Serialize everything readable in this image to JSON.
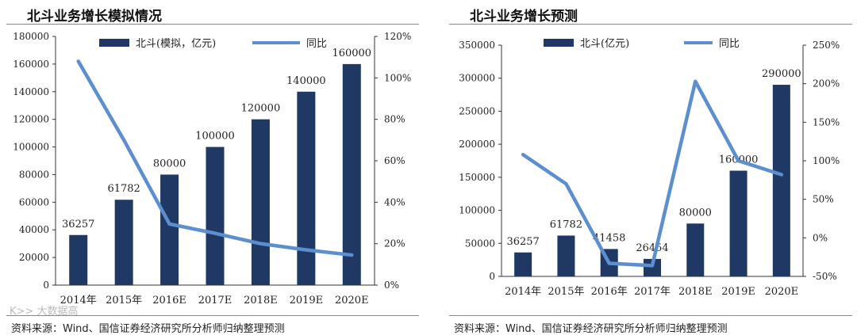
{
  "watermark": "K>> 大数据高",
  "chart_data": [
    {
      "type": "bar",
      "title": "北斗业务增长模拟情况",
      "source": "资料来源：Wind、国信证券经济研究所分析师归纳整理预测",
      "categories": [
        "2014年",
        "2015年",
        "2016E",
        "2017E",
        "2018E",
        "2019E",
        "2020E"
      ],
      "series": [
        {
          "name": "北斗(模拟，亿元)",
          "type": "bar",
          "axis": "left",
          "color": "#1f3864",
          "values": [
            36257,
            61782,
            80000,
            100000,
            120000,
            140000,
            160000
          ],
          "labels": [
            "36257",
            "61782",
            "80000",
            "100000",
            "120000",
            "140000",
            "160000"
          ]
        },
        {
          "name": "同比",
          "type": "line",
          "axis": "right",
          "color": "#5b8fd0",
          "values": [
            108,
            70,
            29.5,
            25,
            20,
            17,
            14.5
          ]
        }
      ],
      "left_axis": {
        "min": 0,
        "max": 180000,
        "ticks": [
          "0",
          "20000",
          "40000",
          "60000",
          "80000",
          "100000",
          "120000",
          "140000",
          "160000",
          "180000"
        ]
      },
      "right_axis": {
        "min": 0,
        "max": 120,
        "ticks": [
          "0%",
          "20%",
          "40%",
          "60%",
          "80%",
          "100%",
          "120%"
        ]
      }
    },
    {
      "type": "bar",
      "title": "北斗业务增长预测",
      "source": "资料来源：Wind、国信证券经济研究所分析师归纳整理预测",
      "categories": [
        "2014年",
        "2015年",
        "2016年",
        "2017年",
        "2018E",
        "2019E",
        "2020E"
      ],
      "series": [
        {
          "name": "北斗(亿元)",
          "type": "bar",
          "axis": "left",
          "color": "#1f3864",
          "values": [
            36257,
            61782,
            41458,
            26454,
            80000,
            160000,
            290000
          ],
          "labels": [
            "36257",
            "61782",
            "41458",
            "26454",
            "80000",
            "160000",
            "290000"
          ]
        },
        {
          "name": "同比",
          "type": "line",
          "axis": "right",
          "color": "#5b8fd0",
          "values": [
            108,
            70,
            -33,
            -36,
            203,
            100,
            82
          ]
        }
      ],
      "left_axis": {
        "min": 0,
        "max": 350000,
        "ticks": [
          "0",
          "50000",
          "100000",
          "150000",
          "200000",
          "250000",
          "300000",
          "350000"
        ]
      },
      "right_axis": {
        "min": -50,
        "max": 250,
        "ticks": [
          "-50%",
          "0%",
          "50%",
          "100%",
          "150%",
          "200%",
          "250%"
        ]
      }
    }
  ]
}
